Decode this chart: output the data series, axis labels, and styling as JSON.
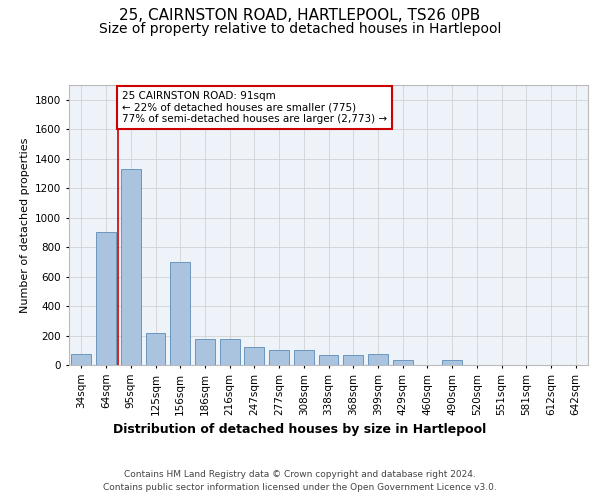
{
  "title1": "25, CAIRNSTON ROAD, HARTLEPOOL, TS26 0PB",
  "title2": "Size of property relative to detached houses in Hartlepool",
  "xlabel": "Distribution of detached houses by size in Hartlepool",
  "ylabel": "Number of detached properties",
  "categories": [
    "34sqm",
    "64sqm",
    "95sqm",
    "125sqm",
    "156sqm",
    "186sqm",
    "216sqm",
    "247sqm",
    "277sqm",
    "308sqm",
    "338sqm",
    "368sqm",
    "399sqm",
    "429sqm",
    "460sqm",
    "490sqm",
    "520sqm",
    "551sqm",
    "581sqm",
    "612sqm",
    "642sqm"
  ],
  "values": [
    75,
    900,
    1330,
    220,
    700,
    175,
    175,
    120,
    100,
    100,
    70,
    70,
    75,
    35,
    0,
    35,
    0,
    0,
    0,
    0,
    0
  ],
  "bar_color": "#aac4e0",
  "bar_edge_color": "#5b8db8",
  "bar_width": 0.8,
  "vline_x": 1.5,
  "vline_color": "#cc0000",
  "annotation_text": "25 CAIRNSTON ROAD: 91sqm\n← 22% of detached houses are smaller (775)\n77% of semi-detached houses are larger (2,773) →",
  "annotation_box_color": "#ffffff",
  "annotation_box_edge": "#cc0000",
  "ylim": [
    0,
    1900
  ],
  "yticks": [
    0,
    200,
    400,
    600,
    800,
    1000,
    1200,
    1400,
    1600,
    1800
  ],
  "grid_color": "#cccccc",
  "bg_color": "#eef2f9",
  "footer": "Contains HM Land Registry data © Crown copyright and database right 2024.\nContains public sector information licensed under the Open Government Licence v3.0.",
  "title1_fontsize": 11,
  "title2_fontsize": 10,
  "xlabel_fontsize": 9,
  "ylabel_fontsize": 8,
  "tick_fontsize": 7.5,
  "footer_fontsize": 6.5
}
